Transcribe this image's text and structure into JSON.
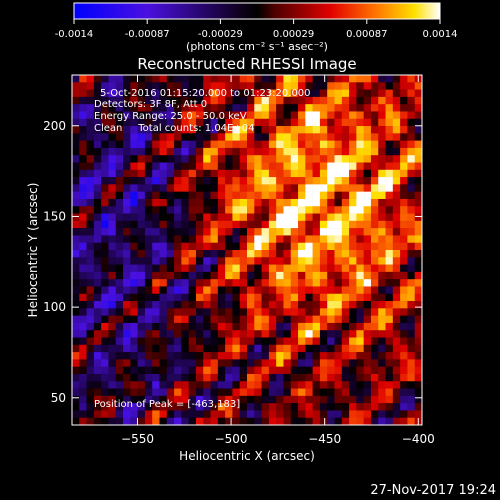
{
  "colorbar": {
    "tick_labels": [
      "-0.0014",
      "-0.00087",
      "-0.00029",
      "0.00029",
      "0.00087",
      "0.0014"
    ],
    "units_label": "(photons cm⁻² s⁻¹ asec⁻²)",
    "range": [
      -0.0014,
      0.0014
    ],
    "colors": [
      "#0000ff",
      "#5a00c8",
      "#000000",
      "#c80000",
      "#ff6400",
      "#ffff00",
      "#ffffff"
    ]
  },
  "chart_data": {
    "type": "heatmap",
    "title": "Reconstructed RHESSI Image",
    "xlabel": "Heliocentric X (arcsec)",
    "ylabel": "Heliocentric Y (arcsec)",
    "xlim": [
      -585,
      -398
    ],
    "ylim": [
      35,
      228
    ],
    "x_ticks": [
      -550,
      -500,
      -450,
      -400
    ],
    "y_ticks": [
      50,
      100,
      150,
      200
    ],
    "annotations": [
      "5-Oct-2016 01:15:20.000 to 01:23:20.000",
      "Detectors: 3F 8F, Att 0",
      "Energy Range: 25.0 - 50.0 keV",
      "Clean     Total counts: 1.04E+04"
    ],
    "peak_label": "Position of Peak = [-463,183]",
    "peak_position": [
      -463,
      183
    ],
    "grid": false
  },
  "footer": {
    "timestamp": "27-Nov-2017 19:24"
  }
}
